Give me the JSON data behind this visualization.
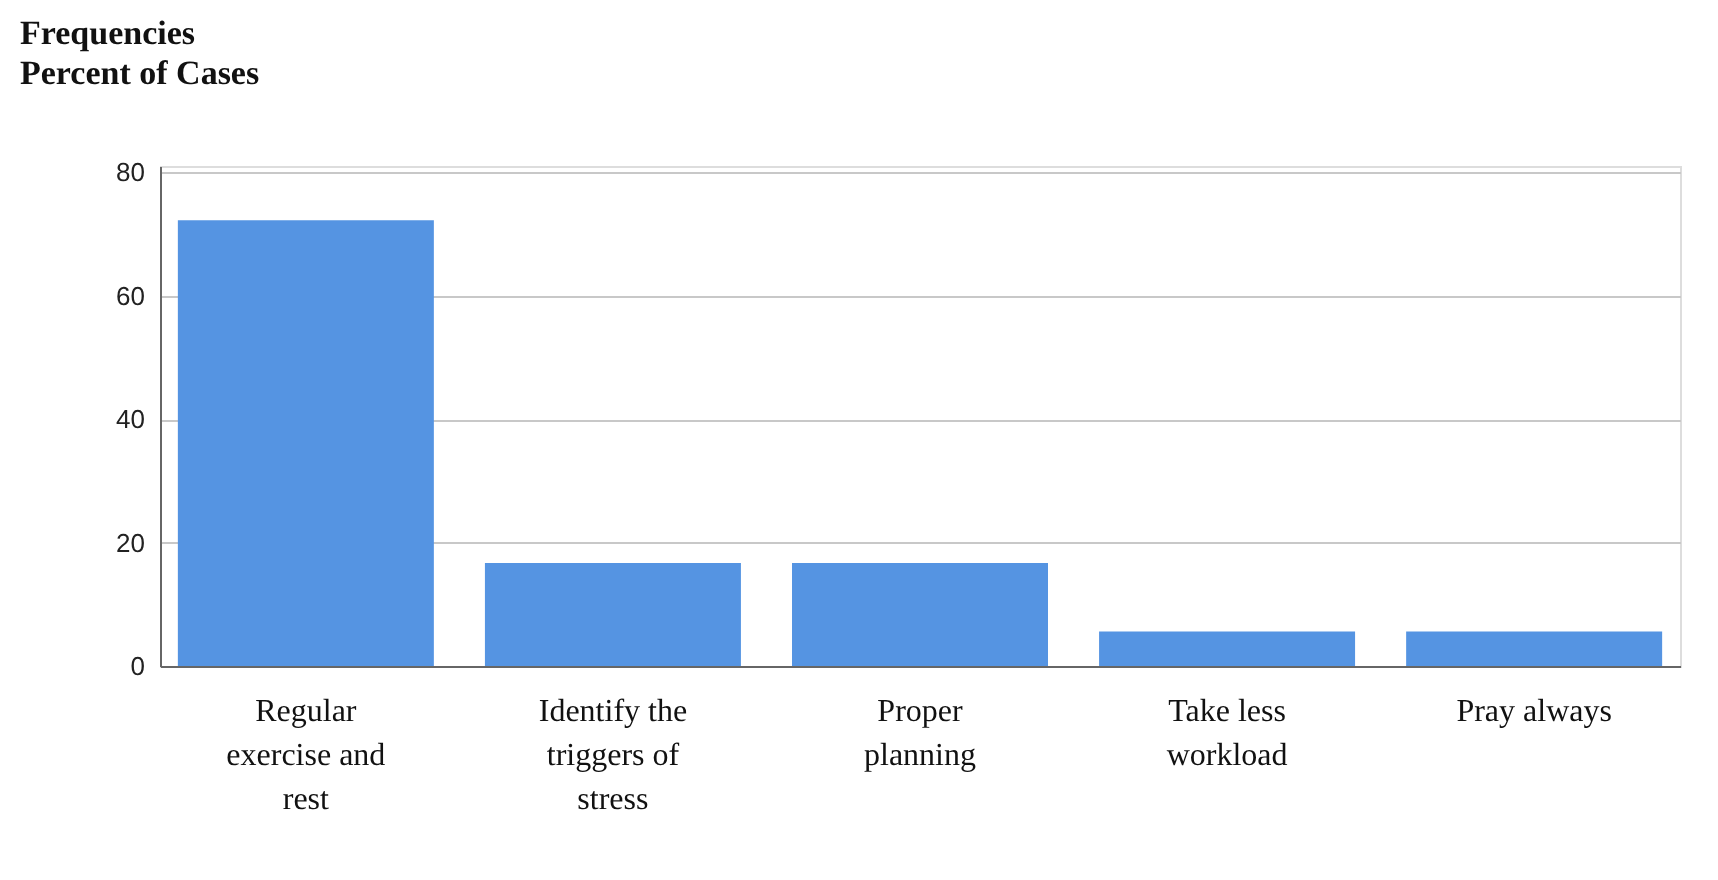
{
  "chart_data": {
    "type": "bar",
    "title": "Frequencies",
    "ylabel": "Percent of Cases",
    "categories": [
      "Regular exercise and rest",
      "Identify the triggers of stress",
      "Proper planning",
      "Take less workload",
      "Pray always"
    ],
    "values": [
      72.2,
      16.7,
      16.7,
      5.6,
      5.6
    ],
    "color": "#5594e2",
    "ylim": [
      0,
      81
    ],
    "yticks": [
      0,
      20,
      40,
      60,
      80
    ],
    "grid": "y"
  }
}
